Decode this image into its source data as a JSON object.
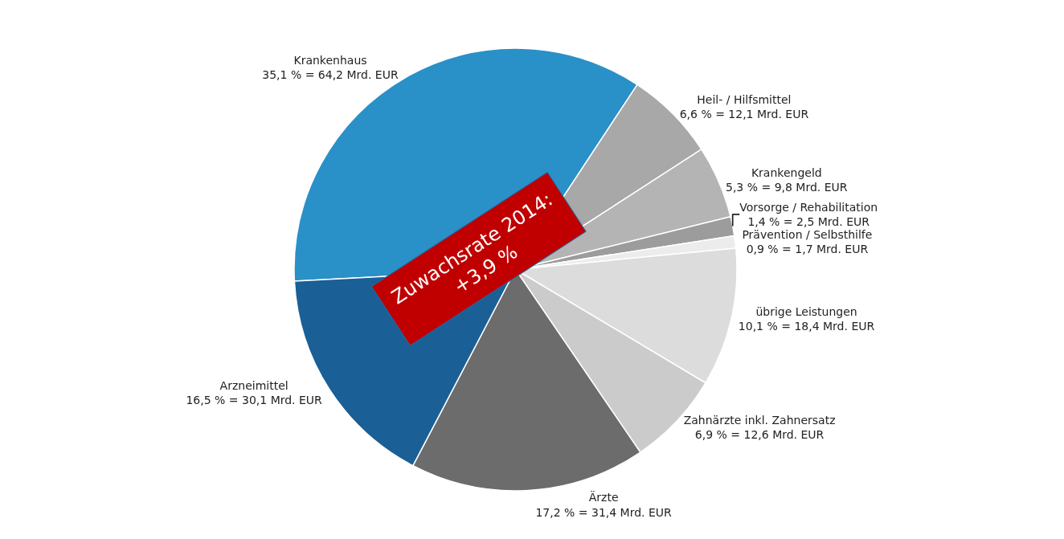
{
  "chart_data": {
    "type": "pie",
    "categories": [
      "Krankenhaus",
      "Heil- / Hilfsmittel",
      "Krankengeld",
      "Vorsorge / Rehabilitation",
      "Prävention / Selbsthilfe",
      "übrige Leistungen",
      "Zahnärzte inkl. Zahnersatz",
      "Ärzte",
      "Arzneimittel"
    ],
    "values": [
      35.1,
      6.6,
      5.3,
      1.4,
      0.9,
      10.1,
      6.9,
      17.2,
      16.5
    ],
    "value_labels": [
      "35,1 % = 64,2 Mrd. EUR",
      "6,6 % = 12,1 Mrd. EUR",
      "5,3 % = 9,8 Mrd. EUR",
      "1,4 % = 2,5 Mrd. EUR",
      "0,9 % = 1,7 Mrd. EUR",
      "10,1 % = 18,4 Mrd. EUR",
      "6,9 % = 12,6 Mrd. EUR",
      "17,2 % = 31,4 Mrd. EUR",
      "16,5 % = 30,1 Mrd. EUR"
    ],
    "colors": [
      "#2a90c8",
      "#a8a8a8",
      "#b4b4b4",
      "#9c9c9c",
      "#ececec",
      "#dcdcdc",
      "#cbcbcb",
      "#6c6c6c",
      "#1a5f96"
    ],
    "annotations": [
      "Zuwachsrate 2014:\n+3,9 %"
    ],
    "legend": false
  }
}
